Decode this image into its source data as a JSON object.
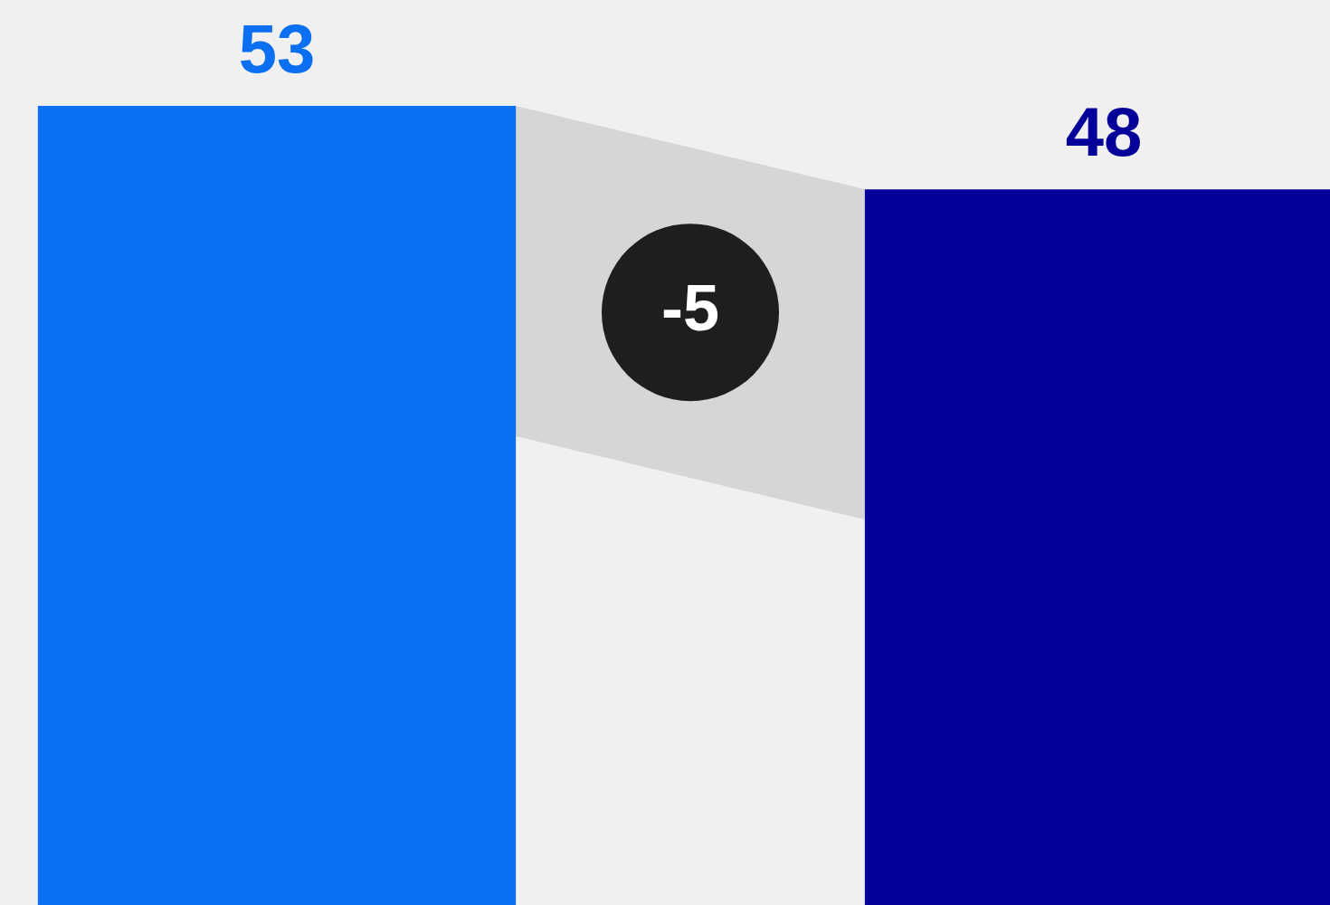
{
  "chart_data": {
    "type": "bar",
    "categories": [
      null,
      null
    ],
    "values": [
      53,
      48
    ],
    "colors": [
      "#0a6ff0",
      "#06009a"
    ],
    "data_labels": true,
    "tick_labels": false,
    "annotations": [
      "-5"
    ]
  }
}
